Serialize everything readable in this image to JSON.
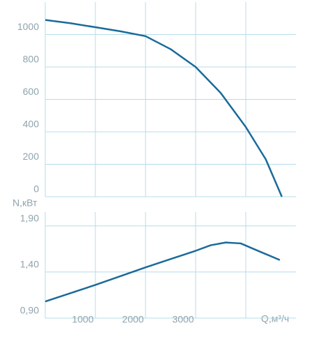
{
  "chart_data": [
    {
      "type": "line",
      "x": [
        0,
        500,
        1000,
        1500,
        2000,
        2500,
        3000,
        3500,
        4000,
        4400,
        4720
      ],
      "series": [
        {
          "color": "#1a6a9a",
          "values": [
            1090,
            1070,
            1045,
            1020,
            990,
            910,
            800,
            640,
            430,
            230,
            0
          ]
        }
      ],
      "xlim": [
        0,
        5000
      ],
      "ylim": [
        0,
        1200
      ],
      "yticks": [
        0,
        200,
        400,
        600,
        800,
        1000
      ],
      "grid": true
    },
    {
      "type": "line",
      "x": [
        0,
        1000,
        2000,
        3000,
        3300,
        3600,
        3900,
        4200,
        4680
      ],
      "series": [
        {
          "color": "#1a6a9a",
          "values": [
            1.08,
            1.26,
            1.45,
            1.63,
            1.69,
            1.72,
            1.71,
            1.64,
            1.53
          ]
        }
      ],
      "xlabel": "Q,м³/ч",
      "ylabel": "N,кВт",
      "xlim": [
        0,
        5000
      ],
      "xticks": [
        1000,
        2000,
        3000,
        {
          "value": 4000,
          "label": null
        }
      ],
      "ylim": [
        0.9,
        2.05
      ],
      "yticks": [
        {
          "value": 0.9,
          "label": "0,90"
        },
        {
          "value": 1.4,
          "label": "1,40"
        },
        {
          "value": 1.9,
          "label": "1,90"
        }
      ],
      "grid": true
    }
  ]
}
